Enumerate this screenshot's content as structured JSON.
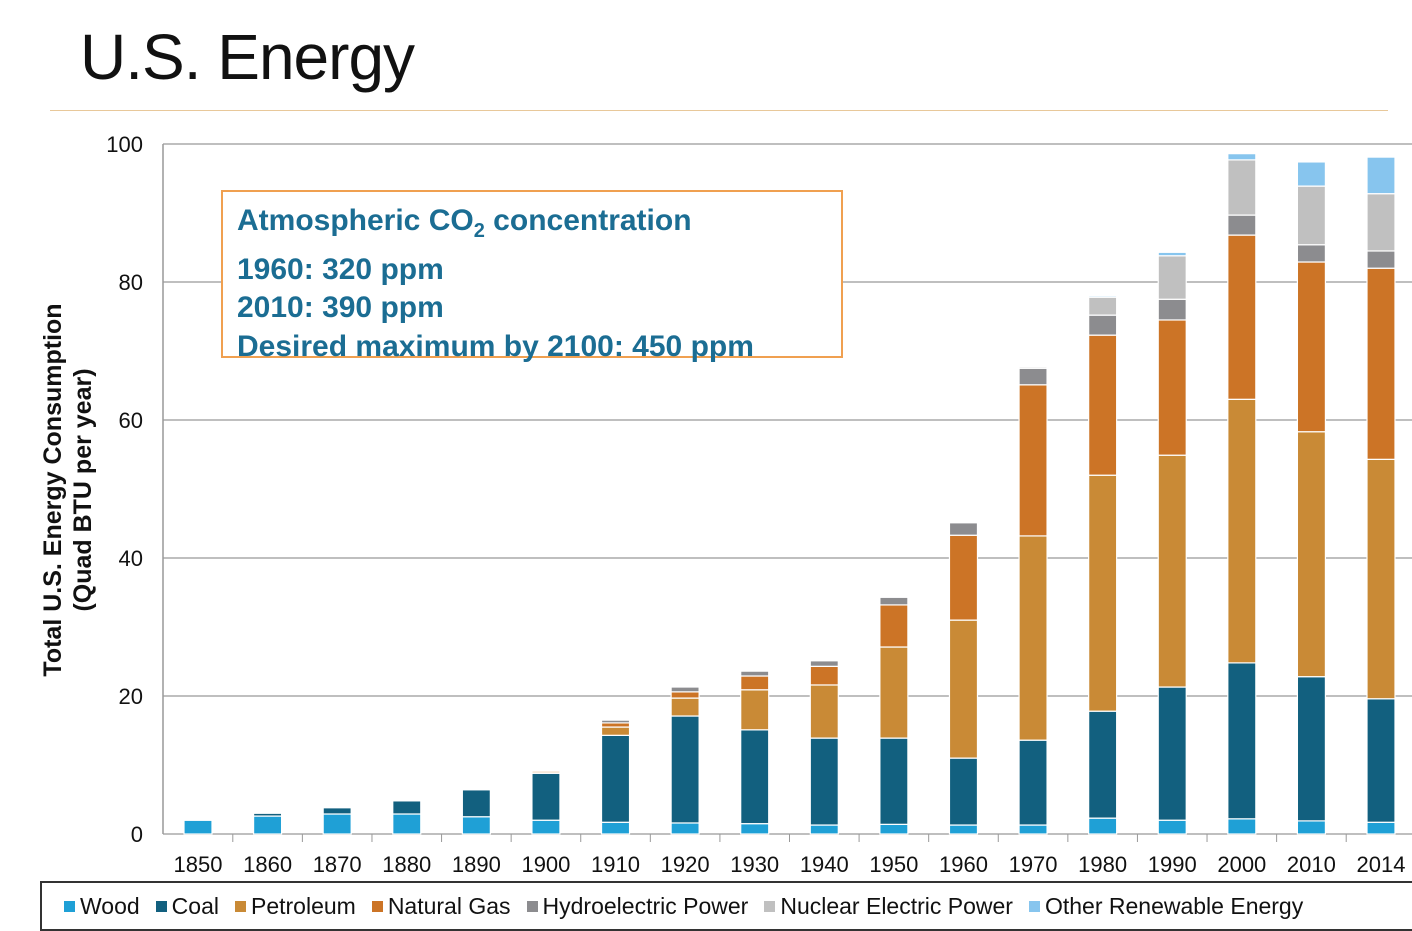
{
  "page": {
    "title": "U.S. Energy"
  },
  "annotation": {
    "line1_prefix": "Atmospheric CO",
    "line1_sub": "2",
    "line1_suffix": " concentration",
    "line2": "1960:  320 ppm",
    "line3": "2010: 390 ppm",
    "line4": "Desired maximum by 2100:  450 ppm"
  },
  "chart_data": {
    "type": "bar",
    "stacked": true,
    "ylabel_line1": "Total U.S. Energy Consumption",
    "ylabel_line2": "(Quad BTU per year)",
    "ylim": [
      0,
      100
    ],
    "yticks": [
      0,
      20,
      40,
      60,
      80,
      100
    ],
    "grid": true,
    "legend_placement": "bottom",
    "categories": [
      "1850",
      "1860",
      "1870",
      "1880",
      "1890",
      "1900",
      "1910",
      "1920",
      "1930",
      "1940",
      "1950",
      "1960",
      "1970",
      "1980",
      "1990",
      "2000",
      "2010",
      "2014"
    ],
    "series": [
      {
        "name": "Wood",
        "color": "#1fa0d6",
        "values": [
          2.0,
          2.6,
          2.9,
          2.9,
          2.5,
          2.0,
          1.7,
          1.6,
          1.5,
          1.3,
          1.4,
          1.3,
          1.3,
          2.3,
          2.0,
          2.2,
          1.9,
          1.7
        ]
      },
      {
        "name": "Coal",
        "color": "#12607f",
        "values": [
          0.1,
          0.4,
          0.9,
          1.9,
          3.9,
          6.8,
          12.6,
          15.5,
          13.6,
          12.6,
          12.5,
          9.7,
          12.3,
          15.5,
          19.3,
          22.6,
          20.9,
          17.9
        ]
      },
      {
        "name": "Petroleum",
        "color": "#c98a36",
        "values": [
          0,
          0,
          0,
          0,
          0,
          0.2,
          1.2,
          2.6,
          5.8,
          7.7,
          13.2,
          20.0,
          29.6,
          34.2,
          33.6,
          38.2,
          35.5,
          34.7
        ]
      },
      {
        "name": "Natural Gas",
        "color": "#cc7426",
        "values": [
          0,
          0,
          0,
          0,
          0,
          0.2,
          0.6,
          0.9,
          2.0,
          2.7,
          6.1,
          12.3,
          21.9,
          20.3,
          19.6,
          23.8,
          24.6,
          27.7
        ]
      },
      {
        "name": "Hydroelectric Power",
        "color": "#8c8c8f",
        "values": [
          0,
          0,
          0,
          0,
          0,
          0.1,
          0.4,
          0.7,
          0.7,
          0.8,
          1.1,
          1.8,
          2.4,
          2.9,
          3.0,
          2.9,
          2.5,
          2.5
        ]
      },
      {
        "name": "Nuclear Electric Power",
        "color": "#c0c0c0",
        "values": [
          0,
          0,
          0,
          0,
          0,
          0,
          0,
          0,
          0,
          0,
          0,
          0,
          0.2,
          2.6,
          6.3,
          8.0,
          8.5,
          8.3
        ]
      },
      {
        "name": "Other Renewable Energy",
        "color": "#87c5ee",
        "values": [
          0,
          0,
          0,
          0,
          0,
          0,
          0,
          0,
          0,
          0,
          0,
          0,
          0,
          0.2,
          0.5,
          0.9,
          3.5,
          5.3
        ]
      }
    ]
  }
}
